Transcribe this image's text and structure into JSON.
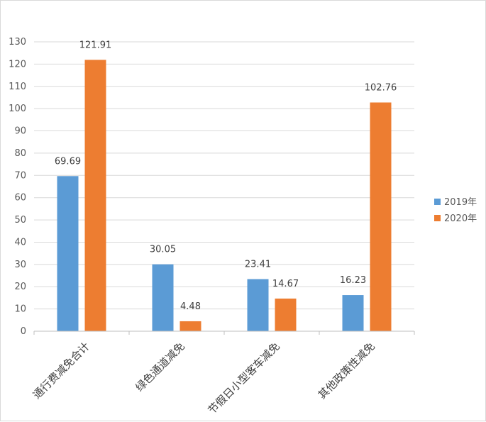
{
  "chart_data": {
    "type": "bar",
    "title": "",
    "xlabel": "",
    "ylabel": "",
    "categories": [
      "通行费减免合计",
      "绿色通道减免",
      "节假日小型客车减免",
      "其他政策性减免"
    ],
    "series": [
      {
        "name": "2019年",
        "values": [
          69.69,
          30.05,
          23.41,
          16.23
        ],
        "color": "#5b9bd5"
      },
      {
        "name": "2020年",
        "values": [
          121.91,
          4.48,
          14.67,
          102.76
        ],
        "color": "#ed7d31"
      }
    ],
    "ylim": [
      0,
      130
    ],
    "yticks": [
      0,
      10,
      20,
      30,
      40,
      50,
      60,
      70,
      80,
      90,
      100,
      110,
      120,
      130
    ],
    "grid": true,
    "legend_position": "right",
    "gridline_color": "#d9d9d9"
  }
}
